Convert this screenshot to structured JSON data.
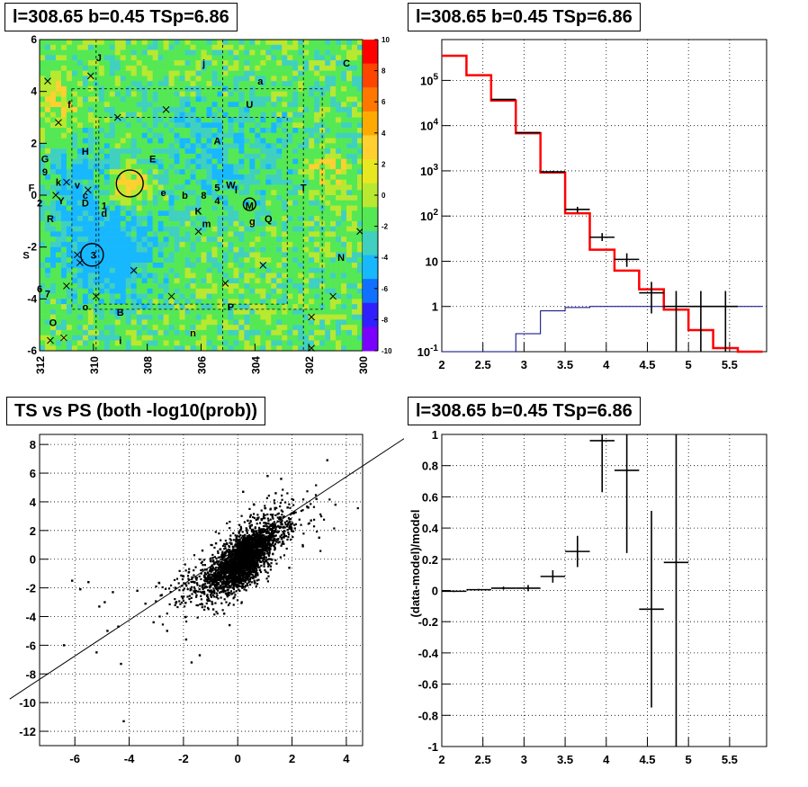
{
  "chart_data": [
    {
      "type": "heatmap",
      "title": "l=308.65 b=0.45 TSp=6.86",
      "x_ticks": [
        "312",
        "310",
        "308",
        "306",
        "304",
        "302",
        "300"
      ],
      "y_ticks": [
        "6",
        "4",
        "2",
        "0",
        "-2",
        "-4",
        "-6"
      ],
      "xlim": [
        312,
        300
      ],
      "ylim": [
        -6,
        6
      ],
      "colorbar": {
        "ticks": [
          "10",
          "8",
          "6",
          "4",
          "2",
          "0",
          "-2",
          "-4",
          "-6",
          "-8",
          "-10"
        ],
        "range": [
          -10,
          10
        ]
      },
      "colors": {
        "background": "#55e855",
        "low": "#33b5ff",
        "high": "#ffd030"
      },
      "source_labels": [
        {
          "text": "J",
          "l": 309.8,
          "b": 5.3
        },
        {
          "text": "j",
          "l": 305.9,
          "b": 5.1
        },
        {
          "text": "C",
          "l": 300.6,
          "b": 5.1
        },
        {
          "text": "a",
          "l": 303.8,
          "b": 4.4
        },
        {
          "text": "U",
          "l": 304.2,
          "b": 3.5
        },
        {
          "text": "f",
          "l": 310.9,
          "b": 3.5
        },
        {
          "text": "A",
          "l": 305.4,
          "b": 2.1
        },
        {
          "text": "H",
          "l": 310.3,
          "b": 1.7
        },
        {
          "text": "E",
          "l": 307.8,
          "b": 1.4
        },
        {
          "text": "G",
          "l": 311.8,
          "b": 1.4
        },
        {
          "text": "9",
          "l": 311.8,
          "b": 0.9
        },
        {
          "text": "k",
          "l": 311.3,
          "b": 0.5
        },
        {
          "text": "v",
          "l": 310.6,
          "b": 0.4
        },
        {
          "text": "F",
          "l": 312.3,
          "b": 0.3
        },
        {
          "text": "W",
          "l": 304.9,
          "b": 0.4
        },
        {
          "text": "5",
          "l": 305.4,
          "b": 0.3
        },
        {
          "text": "T",
          "l": 302.2,
          "b": 0.3
        },
        {
          "text": "c",
          "l": 310.3,
          "b": 0.0
        },
        {
          "text": "e",
          "l": 307.4,
          "b": 0.1
        },
        {
          "text": "b",
          "l": 306.6,
          "b": 0.0
        },
        {
          "text": "8",
          "l": 305.9,
          "b": 0.0
        },
        {
          "text": "4",
          "l": 305.4,
          "b": -0.2
        },
        {
          "text": "l",
          "l": 304.7,
          "b": 0.2
        },
        {
          "text": "2",
          "l": 312.0,
          "b": -0.3
        },
        {
          "text": "Y",
          "l": 311.2,
          "b": -0.2
        },
        {
          "text": "D",
          "l": 310.3,
          "b": -0.3
        },
        {
          "text": "1",
          "l": 309.6,
          "b": -0.4
        },
        {
          "text": "M",
          "l": 304.2,
          "b": -0.4
        },
        {
          "text": "d",
          "l": 309.6,
          "b": -0.7
        },
        {
          "text": "K",
          "l": 306.1,
          "b": -0.6
        },
        {
          "text": "R",
          "l": 311.6,
          "b": -0.9
        },
        {
          "text": "m",
          "l": 305.8,
          "b": -1.1
        },
        {
          "text": "Q",
          "l": 303.5,
          "b": -0.9
        },
        {
          "text": "g",
          "l": 304.1,
          "b": -1.0
        },
        {
          "text": "3",
          "l": 310.0,
          "b": -2.3
        },
        {
          "text": "S",
          "l": 312.5,
          "b": -2.3
        },
        {
          "text": "N",
          "l": 300.8,
          "b": -2.4
        },
        {
          "text": "6",
          "l": 312.0,
          "b": -3.6
        },
        {
          "text": "7",
          "l": 311.7,
          "b": -3.8
        },
        {
          "text": "o",
          "l": 310.3,
          "b": -4.3
        },
        {
          "text": "B",
          "l": 309.0,
          "b": -4.5
        },
        {
          "text": "P",
          "l": 304.9,
          "b": -4.3
        },
        {
          "text": "O",
          "l": 311.5,
          "b": -4.9
        },
        {
          "text": "n",
          "l": 306.3,
          "b": -5.3
        },
        {
          "text": "i",
          "l": 309.0,
          "b": -5.6
        }
      ],
      "x_markers": [
        {
          "l": 311.7,
          "b": 4.4
        },
        {
          "l": 310.1,
          "b": 4.6
        },
        {
          "l": 311.3,
          "b": 2.8
        },
        {
          "l": 309.1,
          "b": 3.0
        },
        {
          "l": 307.3,
          "b": 3.3
        },
        {
          "l": 311.0,
          "b": 0.5
        },
        {
          "l": 310.2,
          "b": 0.2
        },
        {
          "l": 311.4,
          "b": 0.0
        },
        {
          "l": 310.6,
          "b": -2.3
        },
        {
          "l": 310.5,
          "b": -2.6
        },
        {
          "l": 308.5,
          "b": -2.9
        },
        {
          "l": 306.1,
          "b": -1.4
        },
        {
          "l": 303.7,
          "b": -2.7
        },
        {
          "l": 305.1,
          "b": -3.4
        },
        {
          "l": 307.1,
          "b": -3.9
        },
        {
          "l": 309.9,
          "b": -3.9
        },
        {
          "l": 311.0,
          "b": -3.5
        },
        {
          "l": 301.1,
          "b": -3.9
        },
        {
          "l": 300.1,
          "b": -1.4
        },
        {
          "l": 301.9,
          "b": -4.7
        },
        {
          "l": 311.6,
          "b": -5.6
        },
        {
          "l": 311.1,
          "b": -5.5
        },
        {
          "l": 301.9,
          "b": -5.9
        }
      ],
      "circles": [
        {
          "l": 308.65,
          "b": 0.45,
          "r_deg": 0.5
        },
        {
          "l": 310.05,
          "b": -2.3,
          "r_deg": 0.42
        },
        {
          "l": 304.2,
          "b": -0.35,
          "r_deg": 0.23
        }
      ],
      "dashed_regions": [
        {
          "l0": 310.8,
          "l1": 301.5,
          "b0": -4.4,
          "b1": 4.1
        },
        {
          "l0": 309.8,
          "l1": 302.8,
          "b0": 3.0,
          "b1": -4.2
        }
      ]
    },
    {
      "type": "line",
      "title": "l=308.65 b=0.45 TSp=6.86",
      "x_ticks": [
        "2",
        "2.5",
        "3",
        "3.5",
        "4",
        "4.5",
        "5",
        "5.5"
      ],
      "y_ticks": [
        "10^5",
        "10^4",
        "10^3",
        "10^2",
        "10",
        "1",
        "10^-1"
      ],
      "y_scale": "log",
      "xlim": [
        2.0,
        5.95
      ],
      "ylim": [
        0.1,
        800000
      ],
      "grid": true,
      "bin_edges": [
        2.0,
        2.3,
        2.6,
        2.9,
        3.2,
        3.5,
        3.8,
        4.1,
        4.4,
        4.7,
        5.0,
        5.3,
        5.6,
        5.9
      ],
      "series": [
        {
          "color": "#ff0000",
          "values": [
            350000,
            130000,
            36000,
            6800,
            920,
            115,
            18,
            6.2,
            2.4,
            0.85,
            0.3,
            0.12,
            0.1
          ]
        },
        {
          "color": "#00007f",
          "values": [
            0.1,
            0.1,
            0.1,
            0.25,
            0.8,
            0.95,
            1.0,
            1.0,
            1.0,
            1.0,
            1.0,
            1.0,
            1.0
          ]
        }
      ],
      "data_points": [
        {
          "x": 2.75,
          "y": 38000,
          "lo": 37000,
          "hi": 39000
        },
        {
          "x": 3.05,
          "y": 7000,
          "lo": 6800,
          "hi": 7200
        },
        {
          "x": 3.35,
          "y": 950,
          "lo": 900,
          "hi": 1000
        },
        {
          "x": 3.65,
          "y": 140,
          "lo": 120,
          "hi": 160
        },
        {
          "x": 3.95,
          "y": 34,
          "lo": 28,
          "hi": 42
        },
        {
          "x": 4.25,
          "y": 11,
          "lo": 7.5,
          "hi": 15
        },
        {
          "x": 4.55,
          "y": 2,
          "lo": 0.7,
          "hi": 3.5
        },
        {
          "x": 4.85,
          "y": 1,
          "lo": 0.1,
          "hi": 2.2
        },
        {
          "x": 5.15,
          "y": 1,
          "lo": 0.1,
          "hi": 2.2
        },
        {
          "x": 5.45,
          "y": 1,
          "lo": 0.1,
          "hi": 2.2
        }
      ]
    },
    {
      "type": "scatter",
      "title": "TS vs PS (both -log10(prob))",
      "x_ticks": [
        "-6",
        "-4",
        "-2",
        "0",
        "2",
        "4"
      ],
      "y_ticks": [
        "8",
        "6",
        "4",
        "2",
        "0",
        "-2",
        "-4",
        "-6",
        "-8",
        "-10",
        "-12"
      ],
      "xlim": [
        -7.3,
        4.6
      ],
      "ylim": [
        -13,
        8.7
      ],
      "grid": true,
      "fit_line": {
        "slope": 1.25,
        "intercept": 0.75
      },
      "points": [
        [
          -6.1,
          -1.5
        ],
        [
          -5.8,
          -2.1
        ],
        [
          -5.5,
          -1.6
        ],
        [
          -5.1,
          -3.3
        ],
        [
          -4.9,
          -3.0
        ],
        [
          -4.6,
          -2.3
        ],
        [
          -4.4,
          -4.7
        ],
        [
          -4.8,
          -5.0
        ],
        [
          -6.4,
          -6.0
        ],
        [
          -5.2,
          -6.5
        ],
        [
          -4.3,
          -7.3
        ],
        [
          -4.2,
          -11.3
        ],
        [
          -3.7,
          -2.2
        ],
        [
          -3.4,
          -3.1
        ],
        [
          -3.1,
          -4.4
        ],
        [
          -2.8,
          -2.5
        ],
        [
          -2.6,
          -5.0
        ],
        [
          -2.3,
          -2.0
        ],
        [
          -1.9,
          -5.6
        ],
        [
          -1.7,
          -7.2
        ],
        [
          -1.4,
          -6.7
        ],
        [
          -2.0,
          -1.2
        ],
        [
          -1.6,
          -1.6
        ],
        [
          -1.1,
          -2.9
        ],
        [
          1.1,
          5.8
        ],
        [
          1.6,
          5.6
        ],
        [
          2.6,
          3.6
        ],
        [
          2.9,
          4.2
        ],
        [
          3.3,
          6.9
        ],
        [
          3.6,
          3.8
        ],
        [
          2.4,
          0.9
        ],
        [
          3.0,
          1.5
        ],
        [
          2.7,
          2.7
        ],
        [
          -0.3,
          -4.6
        ],
        [
          -0.5,
          -3.8
        ],
        [
          0.2,
          4.7
        ],
        [
          0.6,
          3.8
        ],
        [
          1.9,
          -0.6
        ],
        [
          2.0,
          3.2
        ],
        [
          1.4,
          4.6
        ],
        [
          -0.9,
          -3.5
        ],
        [
          -1.3,
          0.6
        ],
        [
          -0.8,
          1.1
        ]
      ],
      "core_clusters": [
        {
          "cx": 0.3,
          "cy": 0.3,
          "sx": 0.5,
          "sy": 0.9,
          "n": 1400,
          "corr": 0.6
        },
        {
          "cx": -0.2,
          "cy": -1.1,
          "sx": 0.55,
          "sy": 0.75,
          "n": 700,
          "corr": 0.4
        },
        {
          "cx": 1.0,
          "cy": 1.8,
          "sx": 0.8,
          "sy": 1.1,
          "n": 420,
          "corr": 0.55
        },
        {
          "cx": -1.2,
          "cy": -1.8,
          "sx": 0.8,
          "sy": 1.1,
          "n": 230,
          "corr": 0.5
        }
      ]
    },
    {
      "type": "line",
      "title": "l=308.65 b=0.45 TSp=6.86",
      "x_ticks": [
        "2",
        "2.5",
        "3",
        "3.5",
        "4",
        "4.5",
        "5",
        "5.5"
      ],
      "y_ticks": [
        "1",
        "0.8",
        "0.6",
        "0.4",
        "0.2",
        "0",
        "-0.2",
        "-0.4",
        "-0.6",
        "-0.8",
        "-1"
      ],
      "ylabel": "(data-model)/model",
      "xlim": [
        2.0,
        5.95
      ],
      "ylim": [
        -1,
        1
      ],
      "grid": true,
      "points": [
        {
          "x": 2.15,
          "xerr": 0.15,
          "y": -0.005,
          "yerr": 0.005
        },
        {
          "x": 2.45,
          "xerr": 0.15,
          "y": 0.005,
          "yerr": 0.005
        },
        {
          "x": 2.75,
          "xerr": 0.15,
          "y": 0.015,
          "yerr": 0.01
        },
        {
          "x": 3.05,
          "xerr": 0.15,
          "y": 0.015,
          "yerr": 0.02
        },
        {
          "x": 3.35,
          "xerr": 0.15,
          "y": 0.09,
          "yerr": 0.04
        },
        {
          "x": 3.65,
          "xerr": 0.15,
          "y": 0.25,
          "yerr": 0.1
        },
        {
          "x": 3.95,
          "xerr": 0.15,
          "y": 0.96,
          "yerr": 0.33
        },
        {
          "x": 4.25,
          "xerr": 0.15,
          "y": 0.77,
          "yerr": 0.53
        },
        {
          "x": 4.55,
          "xerr": 0.15,
          "y": -0.12,
          "yerr": 0.63
        },
        {
          "x": 4.85,
          "xerr": 0.15,
          "y": 0.18,
          "yerr": 1.5
        }
      ]
    }
  ]
}
